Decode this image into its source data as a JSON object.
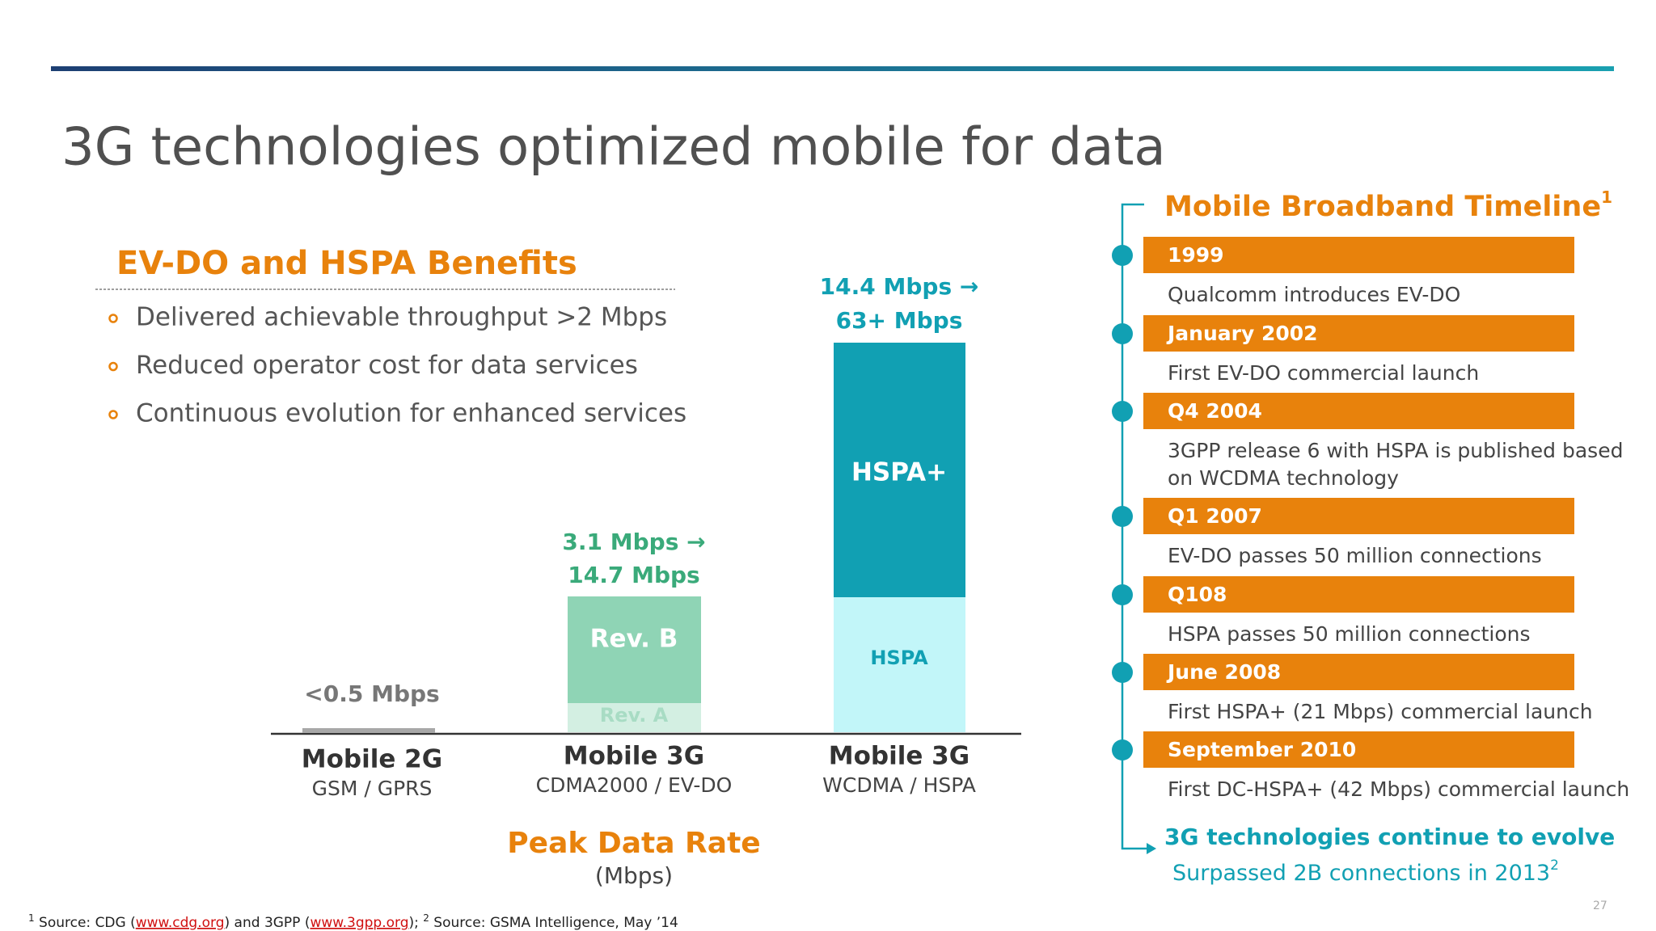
{
  "title": "3G technologies optimized mobile for data",
  "benefits": {
    "heading": "EV-DO and HSPA Benefits",
    "items": [
      "Delivered achievable throughput >2 Mbps",
      "Reduced operator cost for data services",
      "Continuous evolution for enhanced services"
    ]
  },
  "diagram": {
    "bars": [
      {
        "rate_lines": [
          "<0.5 Mbps"
        ],
        "segments": [],
        "name": "Mobile 2G",
        "sub": "GSM / GPRS"
      },
      {
        "rate_lines": [
          "3.1 Mbps →",
          "14.7 Mbps"
        ],
        "segments": [
          "Rev. A",
          "Rev. B"
        ],
        "name": "Mobile 3G",
        "sub": "CDMA2000 / EV-DO"
      },
      {
        "rate_lines": [
          "14.4 Mbps →",
          "63+ Mbps"
        ],
        "segments": [
          "HSPA",
          "HSPA+"
        ],
        "name": "Mobile 3G",
        "sub": "WCDMA / HSPA"
      }
    ],
    "axis_title": "Peak Data Rate",
    "axis_unit": "(Mbps)"
  },
  "timeline": {
    "heading": "Mobile Broadband Timeline",
    "heading_note": "1",
    "events": [
      {
        "date": "1999",
        "text": [
          "Qualcomm introduces EV-DO"
        ]
      },
      {
        "date": "January 2002",
        "text": [
          "First EV-DO commercial launch"
        ]
      },
      {
        "date": "Q4 2004",
        "text": [
          "3GPP release 6 with HSPA is published based",
          "on WCDMA technology"
        ]
      },
      {
        "date": "Q1 2007",
        "text": [
          "EV-DO passes 50 million connections"
        ]
      },
      {
        "date": "Q108",
        "text": [
          "HSPA passes 50 million connections"
        ]
      },
      {
        "date": "June 2008",
        "text": [
          "First HSPA+ (21 Mbps) commercial launch"
        ]
      },
      {
        "date": "September 2010",
        "text": [
          "First DC-HSPA+ (42 Mbps) commercial launch"
        ]
      }
    ],
    "conclusion": "3G technologies continue to evolve",
    "note": "Surpassed 2B connections in 2013",
    "note_mark": "2"
  },
  "footnote": [
    "1",
    " Source:  CDG (",
    "www.cdg.org",
    ") and 3GPP (",
    "www.3gpp.org",
    "); ",
    "2",
    " Source:  GSMA Intelligence, May ’14"
  ],
  "page_number": "27"
}
